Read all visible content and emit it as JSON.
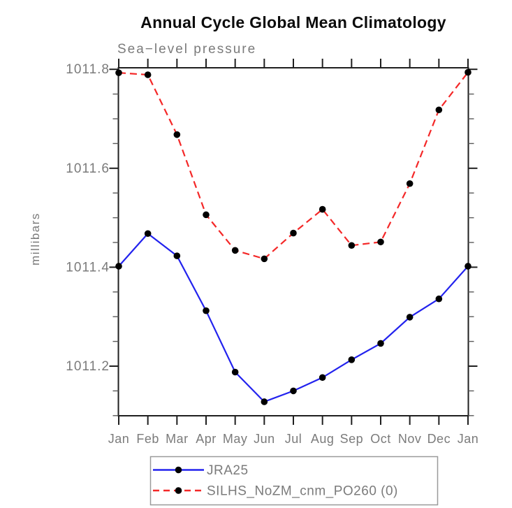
{
  "chart_data": {
    "type": "line",
    "title": "Annual Cycle Global Mean Climatology",
    "subtitle": "Sea−level pressure",
    "ylabel": "millibars",
    "xlabel": "",
    "categories": [
      "Jan",
      "Feb",
      "Mar",
      "Apr",
      "May",
      "Jun",
      "Jul",
      "Aug",
      "Sep",
      "Oct",
      "Nov",
      "Dec",
      "Jan"
    ],
    "series": [
      {
        "name": "JRA25",
        "color": "#2222ee",
        "line_style": "solid",
        "marker": "black-dot",
        "values": [
          1011.402,
          1011.468,
          1011.423,
          1011.312,
          1011.188,
          1011.128,
          1011.15,
          1011.177,
          1011.213,
          1011.246,
          1011.299,
          1011.336,
          1011.402
        ]
      },
      {
        "name": "SILHS_NoZM_cnm_PO260 (0)",
        "color": "#f42828",
        "line_style": "dashed",
        "marker": "black-dot",
        "values": [
          1011.793,
          1011.789,
          1011.668,
          1011.506,
          1011.434,
          1011.417,
          1011.469,
          1011.517,
          1011.444,
          1011.451,
          1011.569,
          1011.718,
          1011.794
        ]
      }
    ],
    "y_ticks": [
      {
        "value": 1011.2,
        "label": "1011.2"
      },
      {
        "value": 1011.4,
        "label": "1011.4"
      },
      {
        "value": 1011.6,
        "label": "1011.6"
      },
      {
        "value": 1011.8,
        "label": "1011.8"
      }
    ],
    "y_minor_step": 0.05,
    "ylim": [
      1011.1,
      1011.803
    ],
    "grid": false,
    "legend_position": "bottom",
    "marker_color": "#000000"
  }
}
